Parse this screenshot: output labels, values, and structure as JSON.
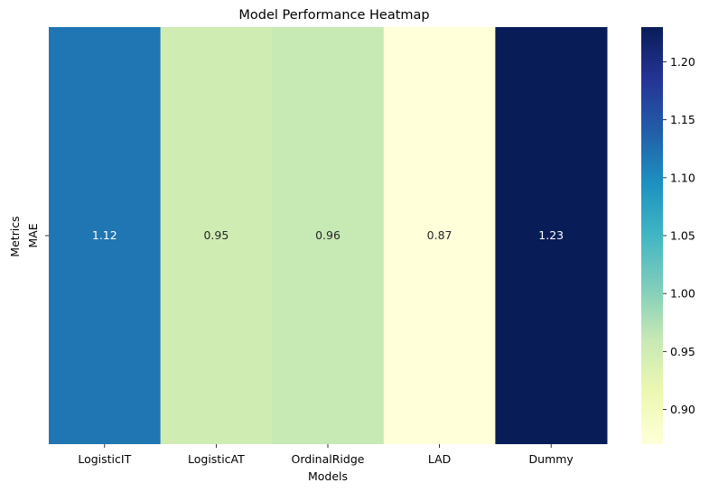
{
  "chart_data": {
    "type": "heatmap",
    "title": "Model Performance Heatmap",
    "xlabel": "Models",
    "ylabel": "Metrics",
    "x_categories": [
      "LogisticIT",
      "LogisticAT",
      "OrdinalRidge",
      "LAD",
      "Dummy"
    ],
    "y_categories": [
      "MAE"
    ],
    "values": [
      [
        1.12,
        0.95,
        0.96,
        0.87,
        1.23
      ]
    ],
    "value_labels": [
      "1.12",
      "0.95",
      "0.96",
      "0.87",
      "1.23"
    ],
    "colorbar": {
      "colormap": "YlGnBu",
      "range": [
        0.87,
        1.23
      ],
      "ticks": [
        0.9,
        0.95,
        1.0,
        1.05,
        1.1,
        1.15,
        1.2
      ],
      "tick_labels": [
        "0.90",
        "0.95",
        "1.00",
        "1.05",
        "1.10",
        "1.15",
        "1.20"
      ]
    },
    "grid": false
  }
}
